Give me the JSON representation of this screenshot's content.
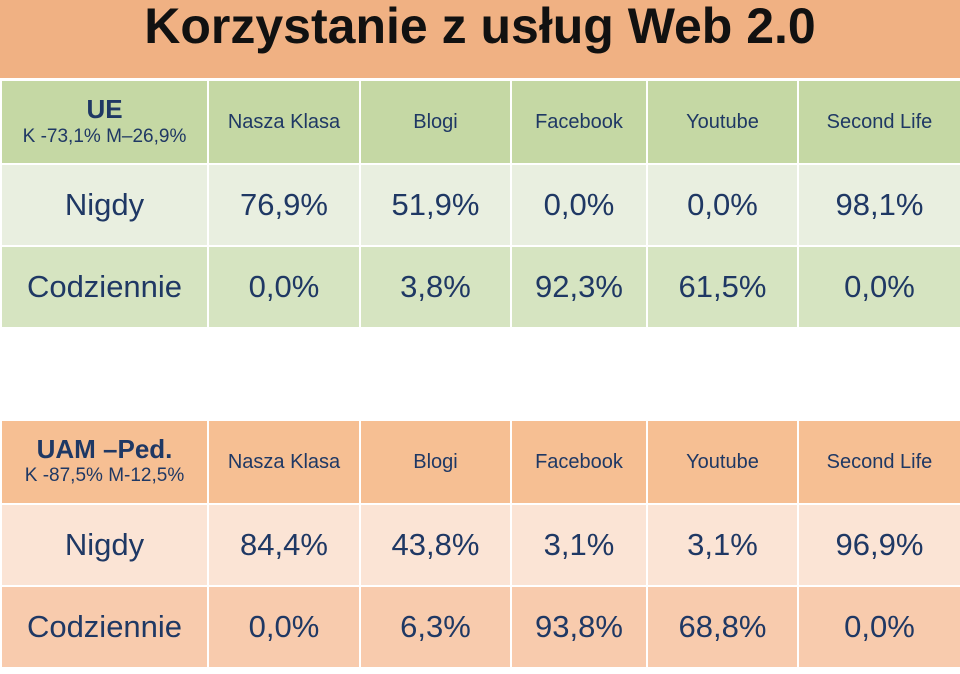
{
  "title": "Korzystanie z usług Web 2.0",
  "tables": [
    {
      "corner_title": "UE",
      "corner_sub": "K -73,1% M–26,9%",
      "columns": [
        "Nasza Klasa",
        "Blogi",
        "Facebook",
        "Youtube",
        "Second Life"
      ],
      "rows": [
        {
          "label": "Nigdy",
          "values": [
            "76,9%",
            "51,9%",
            "0,0%",
            "0,0%",
            "98,1%"
          ]
        },
        {
          "label": "Codziennie",
          "values": [
            "0,0%",
            "3,8%",
            "92,3%",
            "61,5%",
            "0,0%"
          ]
        }
      ]
    },
    {
      "corner_title": "UAM –Ped.",
      "corner_sub": "K -87,5% M-12,5%",
      "columns": [
        "Nasza Klasa",
        "Blogi",
        "Facebook",
        "Youtube",
        "Second Life"
      ],
      "rows": [
        {
          "label": "Nigdy",
          "values": [
            "84,4%",
            "43,8%",
            "3,1%",
            "3,1%",
            "96,9%"
          ]
        },
        {
          "label": "Codziennie",
          "values": [
            "0,0%",
            "6,3%",
            "93,8%",
            "68,8%",
            "0,0%"
          ]
        }
      ]
    }
  ],
  "colors": {
    "title_band": "#f0b183",
    "table1_header": "#c5d8a4",
    "table1_row1": "#e9efe0",
    "table1_row2": "#d6e4c1",
    "table2_header": "#f6bf93",
    "table2_row1": "#fbe4d5",
    "table2_row2": "#f8cbad",
    "text": "#1f3864"
  }
}
